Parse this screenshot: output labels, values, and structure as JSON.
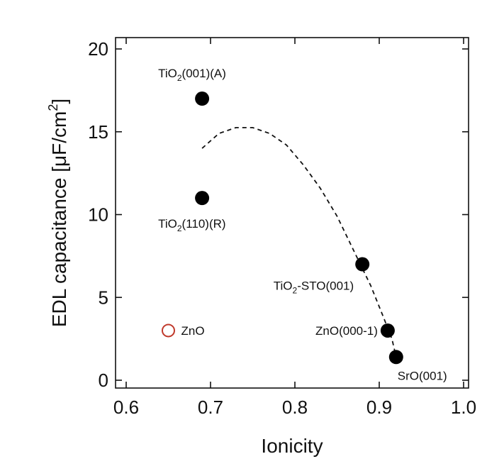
{
  "chart_data": {
    "type": "scatter",
    "xlabel": "Ionicity",
    "ylabel_main": "EDL capacitance [μF/cm",
    "ylabel_sup": "2",
    "ylabel_end": "]",
    "xlim": [
      0.6,
      1.0
    ],
    "ylim": [
      0,
      20
    ],
    "x_ticks": [
      0.6,
      0.7,
      0.8,
      0.9,
      1.0
    ],
    "x_tick_labels": [
      "0.6",
      "0.7",
      "0.8",
      "0.9",
      "1.0"
    ],
    "y_ticks": [
      0,
      5,
      10,
      15,
      20
    ],
    "y_tick_labels": [
      "0",
      "5",
      "10",
      "15",
      "20"
    ],
    "grid": false,
    "points": [
      {
        "x": 0.69,
        "y": 17,
        "label_main": "TiO",
        "label_sub": "2",
        "label_end": "(001)(A)",
        "filled": true,
        "color": "#000000"
      },
      {
        "x": 0.69,
        "y": 11,
        "label_main": "TiO",
        "label_sub": "2",
        "label_end": "(110)(R)",
        "filled": true,
        "color": "#000000"
      },
      {
        "x": 0.88,
        "y": 7,
        "label_main": "TiO",
        "label_sub": "2",
        "label_end": "-STO(001)",
        "filled": true,
        "color": "#000000"
      },
      {
        "x": 0.91,
        "y": 3,
        "label_main": "ZnO(000-1)",
        "label_sub": "",
        "label_end": "",
        "filled": true,
        "color": "#000000"
      },
      {
        "x": 0.92,
        "y": 1.4,
        "label_main": "SrO(001)",
        "label_sub": "",
        "label_end": "",
        "filled": true,
        "color": "#000000"
      },
      {
        "x": 0.65,
        "y": 3,
        "label_main": "ZnO",
        "label_sub": "",
        "label_end": "",
        "filled": false,
        "color": "#c0392b"
      }
    ],
    "trend_curve": {
      "style": "dashed",
      "x": [
        0.69,
        0.71,
        0.73,
        0.75,
        0.77,
        0.79,
        0.81,
        0.83,
        0.85,
        0.87,
        0.89,
        0.905,
        0.915,
        0.92
      ],
      "y": [
        14.0,
        14.9,
        15.25,
        15.25,
        14.9,
        14.2,
        13.0,
        11.6,
        9.9,
        7.8,
        5.7,
        3.8,
        2.5,
        1.4
      ]
    }
  }
}
